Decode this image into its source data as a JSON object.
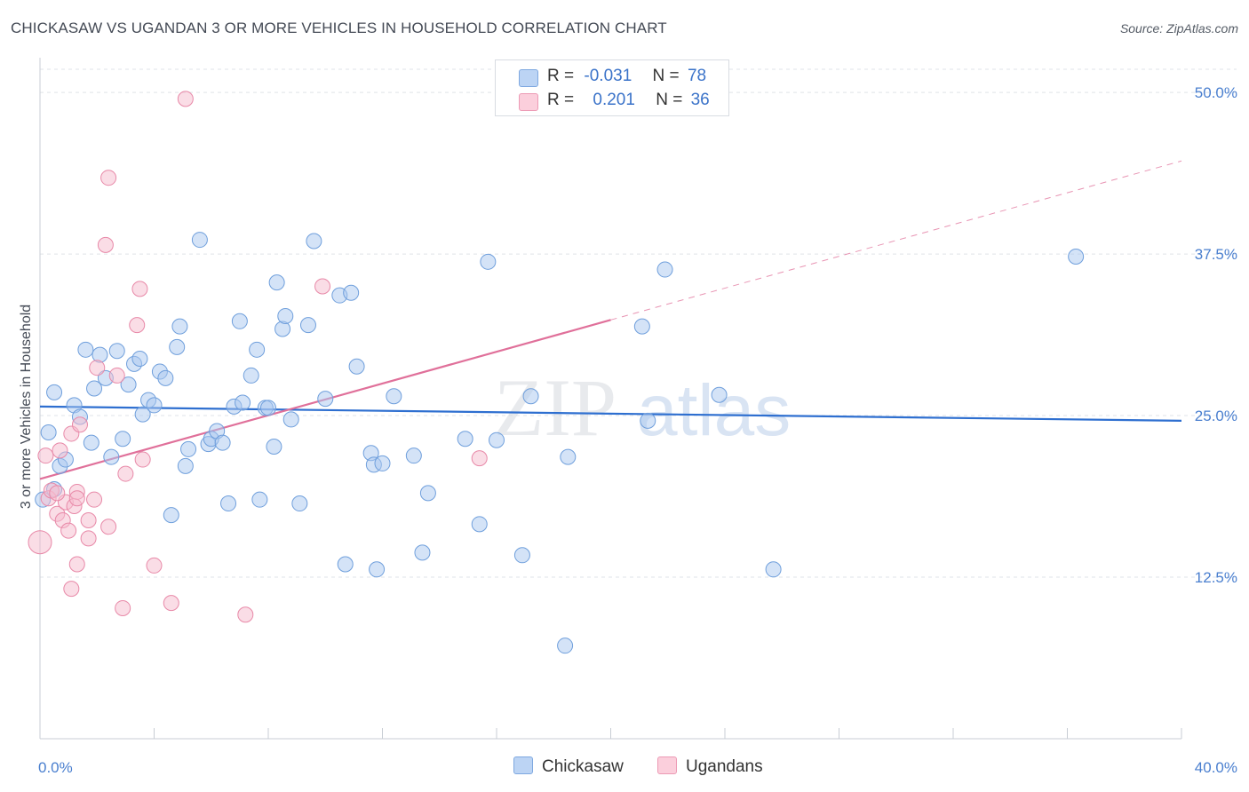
{
  "title": "CHICKASAW VS UGANDAN 3 OR MORE VEHICLES IN HOUSEHOLD CORRELATION CHART",
  "source": "Source: ZipAtlas.com",
  "watermark": {
    "zip": "ZIP",
    "atlas": "atlas"
  },
  "legend": {
    "rows": [
      {
        "r_label": "R =",
        "r_value": "-0.031",
        "n_label": "N =",
        "n_value": "78",
        "color": "#a9c7ef"
      },
      {
        "r_label": "R =",
        "r_value": "0.201",
        "n_label": "N =",
        "n_value": "36",
        "color": "#f4b6c8"
      }
    ]
  },
  "bottom_legend": [
    {
      "label": "Chickasaw",
      "color": "#a9c7ef"
    },
    {
      "label": "Ugandans",
      "color": "#f4b6c8"
    }
  ],
  "colors": {
    "blue_fill": "#a9c7ef",
    "blue_stroke": "#6f9fdc",
    "blue_line": "#2e6fd0",
    "pink_fill": "#f6bccd",
    "pink_stroke": "#e889a8",
    "pink_line": "#e0709a",
    "axis_text": "#4a7fcf",
    "grid": "#dfe3e8"
  },
  "chart_data": {
    "type": "scatter",
    "title": "CHICKASAW VS UGANDAN 3 OR MORE VEHICLES IN HOUSEHOLD CORRELATION CHART",
    "xlabel": "",
    "ylabel": "3 or more Vehicles in Household",
    "xlim": [
      0,
      40
    ],
    "ylim": [
      0,
      52
    ],
    "x_tick_labels": [
      "0.0%",
      "40.0%"
    ],
    "y_ticks": [
      12.5,
      25.0,
      37.5,
      50.0
    ],
    "y_tick_labels": [
      "12.5%",
      "25.0%",
      "37.5%",
      "50.0%"
    ],
    "grid": true,
    "legend_position": "top-center",
    "series": [
      {
        "name": "Chickasaw",
        "points": [
          [
            0.3,
            23.7
          ],
          [
            0.5,
            19.3
          ],
          [
            0.5,
            26.8
          ],
          [
            0.7,
            21.1
          ],
          [
            0.9,
            21.6
          ],
          [
            1.2,
            25.8
          ],
          [
            1.4,
            24.9
          ],
          [
            1.6,
            30.1
          ],
          [
            1.8,
            22.9
          ],
          [
            1.9,
            27.1
          ],
          [
            2.1,
            29.7
          ],
          [
            2.3,
            27.9
          ],
          [
            2.5,
            21.8
          ],
          [
            2.7,
            30.0
          ],
          [
            2.9,
            23.2
          ],
          [
            3.1,
            27.4
          ],
          [
            3.3,
            29.0
          ],
          [
            3.5,
            29.4
          ],
          [
            3.6,
            25.1
          ],
          [
            3.8,
            26.2
          ],
          [
            4.0,
            25.8
          ],
          [
            4.2,
            28.4
          ],
          [
            4.4,
            27.9
          ],
          [
            4.6,
            17.3
          ],
          [
            4.8,
            30.3
          ],
          [
            4.9,
            31.9
          ],
          [
            5.1,
            21.1
          ],
          [
            5.2,
            22.4
          ],
          [
            5.6,
            38.6
          ],
          [
            5.9,
            22.8
          ],
          [
            6.0,
            23.2
          ],
          [
            6.2,
            23.8
          ],
          [
            6.4,
            22.9
          ],
          [
            6.6,
            18.2
          ],
          [
            6.8,
            25.7
          ],
          [
            7.0,
            32.3
          ],
          [
            7.1,
            26.0
          ],
          [
            7.4,
            28.1
          ],
          [
            7.6,
            30.1
          ],
          [
            7.7,
            18.5
          ],
          [
            7.9,
            25.6
          ],
          [
            8.0,
            25.6
          ],
          [
            8.2,
            22.6
          ],
          [
            8.3,
            35.3
          ],
          [
            8.5,
            31.7
          ],
          [
            8.6,
            32.7
          ],
          [
            8.8,
            24.7
          ],
          [
            9.1,
            18.2
          ],
          [
            9.4,
            32.0
          ],
          [
            9.6,
            38.5
          ],
          [
            10.0,
            26.3
          ],
          [
            10.5,
            34.3
          ],
          [
            10.7,
            13.5
          ],
          [
            10.9,
            34.5
          ],
          [
            11.1,
            28.8
          ],
          [
            11.6,
            22.1
          ],
          [
            11.7,
            21.2
          ],
          [
            11.8,
            13.1
          ],
          [
            12.0,
            21.3
          ],
          [
            12.4,
            26.5
          ],
          [
            13.1,
            21.9
          ],
          [
            13.4,
            14.4
          ],
          [
            13.6,
            19.0
          ],
          [
            14.9,
            23.2
          ],
          [
            15.4,
            16.6
          ],
          [
            15.7,
            36.9
          ],
          [
            16.0,
            23.1
          ],
          [
            16.9,
            14.2
          ],
          [
            17.2,
            26.5
          ],
          [
            18.4,
            7.2
          ],
          [
            18.5,
            21.8
          ],
          [
            21.1,
            31.9
          ],
          [
            21.3,
            24.6
          ],
          [
            21.9,
            36.3
          ],
          [
            23.8,
            26.6
          ],
          [
            25.7,
            13.1
          ],
          [
            36.3,
            37.3
          ],
          [
            0.1,
            18.5
          ]
        ],
        "trend": {
          "x": [
            0,
            40
          ],
          "y": [
            25.7,
            24.6
          ]
        }
      },
      {
        "name": "Ugandans",
        "points": [
          [
            0.0,
            15.2
          ],
          [
            0.2,
            21.9
          ],
          [
            0.3,
            18.6
          ],
          [
            0.4,
            19.2
          ],
          [
            0.6,
            17.4
          ],
          [
            0.7,
            22.3
          ],
          [
            0.8,
            16.9
          ],
          [
            0.9,
            18.3
          ],
          [
            1.0,
            16.1
          ],
          [
            1.1,
            23.6
          ],
          [
            1.2,
            18.0
          ],
          [
            1.1,
            11.6
          ],
          [
            1.3,
            19.1
          ],
          [
            1.4,
            24.3
          ],
          [
            1.3,
            13.5
          ],
          [
            1.7,
            16.9
          ],
          [
            1.7,
            15.5
          ],
          [
            1.9,
            18.5
          ],
          [
            2.0,
            28.7
          ],
          [
            2.3,
            38.2
          ],
          [
            2.4,
            16.4
          ],
          [
            2.4,
            43.4
          ],
          [
            2.7,
            28.1
          ],
          [
            2.9,
            10.1
          ],
          [
            3.0,
            20.5
          ],
          [
            3.4,
            32.0
          ],
          [
            3.5,
            34.8
          ],
          [
            3.6,
            21.6
          ],
          [
            4.0,
            13.4
          ],
          [
            4.6,
            10.5
          ],
          [
            5.1,
            49.5
          ],
          [
            7.2,
            9.6
          ],
          [
            9.9,
            35.0
          ],
          [
            15.4,
            21.7
          ],
          [
            1.3,
            18.6
          ],
          [
            0.6,
            19.0
          ]
        ],
        "trend": {
          "x": [
            0,
            20
          ],
          "y": [
            20.1,
            32.4
          ]
        },
        "trend_extension": {
          "x": [
            20,
            40
          ],
          "y": [
            32.4,
            44.7
          ]
        }
      }
    ]
  }
}
